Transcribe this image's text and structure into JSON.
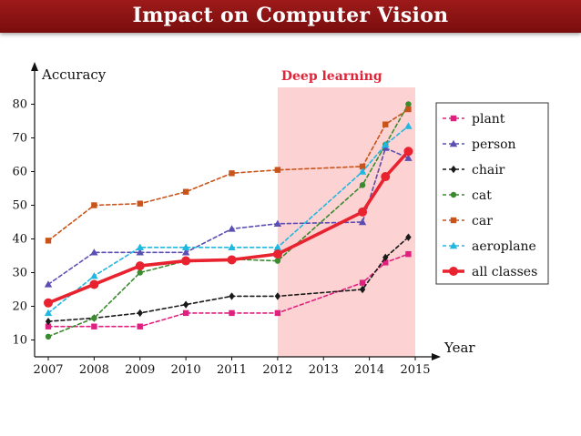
{
  "header": {
    "title": "Impact on Computer Vision"
  },
  "chart_data": {
    "type": "line",
    "title": "",
    "xlabel": "Year",
    "ylabel": "Accuracy",
    "xlim": [
      2007,
      2015
    ],
    "ylim": [
      5,
      85
    ],
    "x_ticks": [
      2007,
      2008,
      2009,
      2010,
      2011,
      2012,
      2013,
      2014,
      2015
    ],
    "y_ticks": [
      10,
      20,
      30,
      40,
      50,
      60,
      70,
      80
    ],
    "grid": false,
    "legend_position": "right",
    "annotation": {
      "text": "Deep learning",
      "x_start": 2012,
      "x_end": 2015,
      "color": "#fdd2d2",
      "text_color": "#e0243a"
    },
    "series": [
      {
        "name": "plant",
        "color": "#e0207f",
        "marker": "square",
        "dashed": true,
        "bold": false,
        "x": [
          2007,
          2008,
          2009,
          2010,
          2011,
          2012,
          2013.85,
          2014.35,
          2014.85
        ],
        "y": [
          14,
          14,
          14,
          18,
          18,
          18,
          27,
          33,
          35.5
        ]
      },
      {
        "name": "person",
        "color": "#5a4db3",
        "marker": "triangle",
        "dashed": true,
        "bold": false,
        "x": [
          2007,
          2008,
          2009,
          2010,
          2011,
          2012,
          2013.85,
          2014.35,
          2014.85
        ],
        "y": [
          26.5,
          36,
          36,
          36,
          43,
          44.5,
          45,
          67,
          64
        ]
      },
      {
        "name": "chair",
        "color": "#1a1a1a",
        "marker": "diamond",
        "dashed": true,
        "bold": false,
        "x": [
          2007,
          2008,
          2009,
          2010,
          2011,
          2012,
          2013.85,
          2014.35,
          2014.85
        ],
        "y": [
          15.5,
          16.5,
          18,
          20.5,
          23,
          23,
          25,
          34.5,
          40.5
        ]
      },
      {
        "name": "cat",
        "color": "#3a8a2e",
        "marker": "circle",
        "dashed": true,
        "bold": false,
        "x": [
          2007,
          2008,
          2009,
          2010,
          2011,
          2012,
          2013.85,
          2014.35,
          2014.85
        ],
        "y": [
          11,
          16.5,
          30,
          33.5,
          34,
          33.5,
          56,
          68,
          80
        ]
      },
      {
        "name": "car",
        "color": "#c8541a",
        "marker": "square",
        "dashed": true,
        "bold": false,
        "x": [
          2007,
          2008,
          2009,
          2010,
          2011,
          2012,
          2013.85,
          2014.35,
          2014.85
        ],
        "y": [
          39.5,
          50,
          50.5,
          54,
          59.5,
          60.5,
          61.5,
          74,
          78.5
        ]
      },
      {
        "name": "aeroplane",
        "color": "#1fb8e0",
        "marker": "triangle",
        "dashed": true,
        "bold": false,
        "x": [
          2007,
          2008,
          2009,
          2010,
          2011,
          2012,
          2013.85,
          2014.35,
          2014.85
        ],
        "y": [
          18,
          29,
          37.5,
          37.5,
          37.5,
          37.5,
          60,
          68,
          73.5
        ]
      },
      {
        "name": "all classes",
        "color": "#e8222e",
        "marker": "circle",
        "dashed": false,
        "bold": true,
        "x": [
          2007,
          2008,
          2009,
          2010,
          2011,
          2012,
          2013.85,
          2014.35,
          2014.85
        ],
        "y": [
          21,
          26.5,
          32,
          33.5,
          33.8,
          35.5,
          48,
          58.5,
          66
        ]
      }
    ]
  }
}
